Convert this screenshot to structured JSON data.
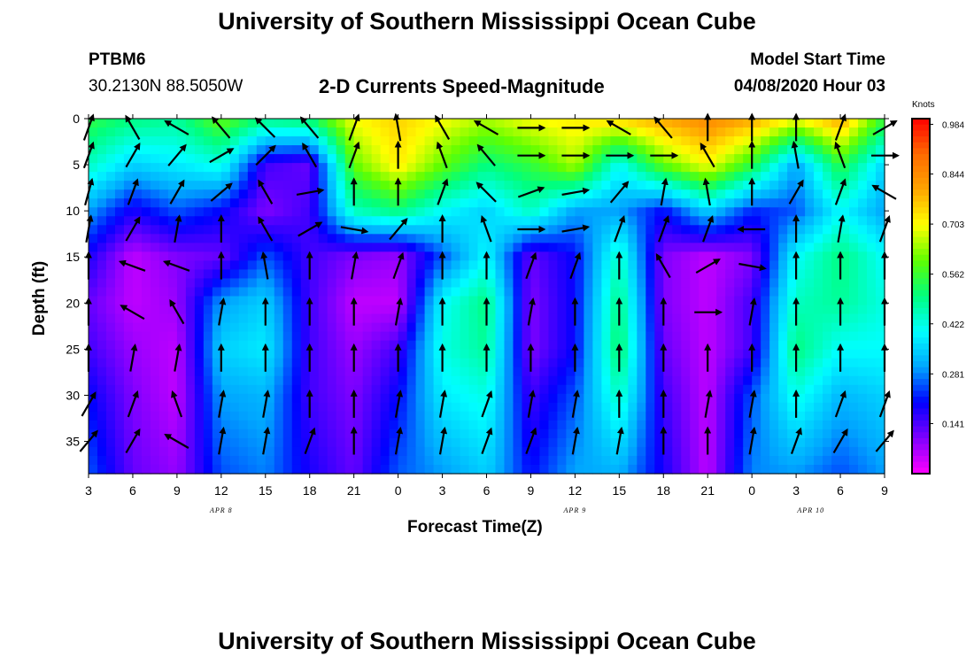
{
  "header": {
    "title": "University of Southern Mississippi Ocean Cube",
    "station": "PTBM6",
    "location": "30.2130N 88.5050W",
    "subtitle": "2-D Currents Speed-Magnitude",
    "model_label": "Model Start Time",
    "model_time": "04/08/2020 Hour 03"
  },
  "footer": {
    "title": "University of Southern Mississippi Ocean Cube"
  },
  "colors": {
    "colormap": [
      "#ff00ff",
      "#7f00ff",
      "#0000ff",
      "#00a5ff",
      "#00ffff",
      "#00ff7f",
      "#5fff00",
      "#ffff00",
      "#ffa500",
      "#ff6a00",
      "#ff0000"
    ],
    "arrow": "#000000",
    "frame": "#000000"
  },
  "chart_data": {
    "type": "heatmap",
    "title": "2-D Currents Speed-Magnitude",
    "xlabel": "Forecast Time(Z)",
    "ylabel": "Depth (ft)",
    "x_ticks": [
      "3",
      "6",
      "9",
      "12",
      "15",
      "18",
      "21",
      "0",
      "3",
      "6",
      "9",
      "12",
      "15",
      "18",
      "21",
      "0",
      "3",
      "6",
      "9"
    ],
    "x_hours": [
      0,
      3,
      6,
      9,
      12,
      15,
      18,
      21,
      24,
      27,
      30,
      33,
      36,
      39,
      42,
      45,
      48,
      51,
      54
    ],
    "x_range_hours": [
      0,
      54
    ],
    "date_labels": [
      {
        "label": "APR 8",
        "hour": 9
      },
      {
        "label": "APR 9",
        "hour": 33
      },
      {
        "label": "APR 10",
        "hour": 49
      }
    ],
    "y_ticks": [
      "0",
      "5",
      "10",
      "15",
      "20",
      "25",
      "30",
      "35"
    ],
    "y_values": [
      0,
      5,
      10,
      15,
      20,
      25,
      30,
      35
    ],
    "ylim": [
      0,
      38.5
    ],
    "y_inverted": true,
    "colorbar": {
      "units": "Knots",
      "ticks": [
        "0.984",
        "0.844",
        "0.703",
        "0.562",
        "0.422",
        "0.281",
        "0.141"
      ],
      "tick_values": [
        0.984,
        0.844,
        0.703,
        0.562,
        0.422,
        0.281,
        0.141
      ],
      "range": [
        0,
        1.0
      ]
    },
    "speed_grid": {
      "hours": [
        0,
        3,
        6,
        9,
        12,
        15,
        18,
        21,
        24,
        27,
        30,
        33,
        36,
        39,
        42,
        45,
        48,
        51,
        54
      ],
      "depths": [
        0,
        5,
        10,
        15,
        20,
        25,
        30,
        38
      ],
      "rows": [
        [
          0.55,
          0.5,
          0.48,
          0.6,
          0.5,
          0.52,
          0.7,
          0.75,
          0.7,
          0.65,
          0.7,
          0.72,
          0.75,
          0.8,
          0.85,
          0.8,
          0.7,
          0.8,
          0.55
        ],
        [
          0.45,
          0.35,
          0.38,
          0.42,
          0.15,
          0.12,
          0.6,
          0.72,
          0.6,
          0.5,
          0.55,
          0.65,
          0.4,
          0.6,
          0.7,
          0.55,
          0.3,
          0.55,
          0.35
        ],
        [
          0.3,
          0.18,
          0.25,
          0.2,
          0.1,
          0.15,
          0.45,
          0.5,
          0.4,
          0.35,
          0.45,
          0.3,
          0.3,
          0.2,
          0.35,
          0.22,
          0.25,
          0.4,
          0.3
        ],
        [
          0.18,
          0.05,
          0.1,
          0.12,
          0.25,
          0.15,
          0.1,
          0.08,
          0.25,
          0.4,
          0.12,
          0.2,
          0.45,
          0.1,
          0.05,
          0.1,
          0.4,
          0.5,
          0.4
        ],
        [
          0.12,
          0.05,
          0.08,
          0.3,
          0.35,
          0.15,
          0.05,
          0.05,
          0.4,
          0.5,
          0.1,
          0.2,
          0.5,
          0.1,
          0.05,
          0.15,
          0.45,
          0.48,
          0.42
        ],
        [
          0.15,
          0.08,
          0.05,
          0.35,
          0.38,
          0.15,
          0.08,
          0.15,
          0.42,
          0.48,
          0.1,
          0.2,
          0.52,
          0.12,
          0.05,
          0.15,
          0.5,
          0.4,
          0.4
        ],
        [
          0.2,
          0.1,
          0.05,
          0.3,
          0.32,
          0.15,
          0.1,
          0.2,
          0.38,
          0.42,
          0.15,
          0.25,
          0.45,
          0.15,
          0.05,
          0.25,
          0.42,
          0.32,
          0.35
        ],
        [
          0.25,
          0.12,
          0.08,
          0.25,
          0.28,
          0.18,
          0.12,
          0.25,
          0.3,
          0.35,
          0.2,
          0.3,
          0.32,
          0.18,
          0.05,
          0.28,
          0.3,
          0.25,
          0.3
        ]
      ]
    },
    "vectors": {
      "hours": [
        0,
        3,
        6,
        9,
        12,
        15,
        18,
        21,
        24,
        27,
        30,
        33,
        36,
        39,
        42,
        45,
        48,
        51,
        54
      ],
      "depths": [
        1,
        4,
        8,
        12,
        16,
        21,
        26,
        31,
        35
      ],
      "angles_deg": [
        [
          20,
          330,
          300,
          320,
          315,
          320,
          20,
          350,
          330,
          300,
          90,
          90,
          300,
          320,
          0,
          0,
          0,
          20,
          60
        ],
        [
          20,
          30,
          40,
          60,
          45,
          330,
          20,
          0,
          340,
          320,
          90,
          90,
          90,
          90,
          330,
          0,
          350,
          340,
          90
        ],
        [
          15,
          20,
          30,
          50,
          330,
          80,
          0,
          0,
          20,
          315,
          70,
          80,
          40,
          10,
          350,
          0,
          30,
          20,
          300
        ],
        [
          10,
          30,
          10,
          0,
          330,
          60,
          100,
          40,
          0,
          340,
          90,
          80,
          20,
          20,
          20,
          270,
          0,
          10,
          20
        ],
        [
          0,
          290,
          290,
          0,
          350,
          0,
          10,
          20,
          0,
          0,
          20,
          20,
          0,
          330,
          60,
          100,
          0,
          0,
          0
        ],
        [
          0,
          300,
          330,
          10,
          0,
          0,
          0,
          10,
          0,
          0,
          10,
          0,
          0,
          0,
          90,
          10,
          0,
          0,
          0
        ],
        [
          0,
          10,
          10,
          0,
          0,
          0,
          0,
          0,
          0,
          0,
          0,
          0,
          0,
          0,
          0,
          0,
          0,
          0,
          0
        ],
        [
          30,
          20,
          340,
          10,
          10,
          0,
          0,
          10,
          10,
          20,
          10,
          10,
          0,
          0,
          10,
          10,
          0,
          20,
          20
        ],
        [
          40,
          30,
          300,
          10,
          10,
          20,
          0,
          10,
          10,
          20,
          20,
          10,
          10,
          0,
          0,
          10,
          20,
          30,
          40
        ]
      ]
    }
  }
}
